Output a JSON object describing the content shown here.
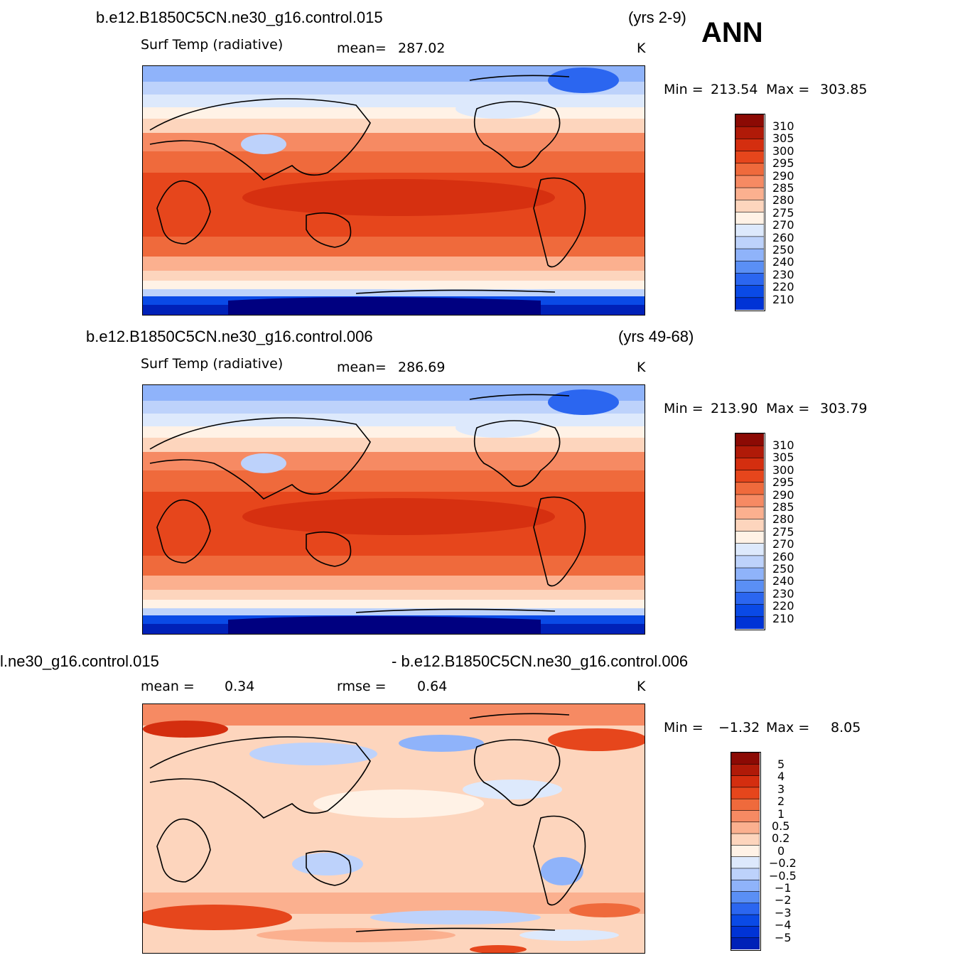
{
  "season": "ANN",
  "colors": {
    "temp": [
      "#000080",
      "#0021b8",
      "#0033d6",
      "#0a4ae6",
      "#2b66f0",
      "#5a8ff5",
      "#8fb3fa",
      "#bdd2fb",
      "#dde9fc",
      "#fff2e6",
      "#fdd5bd",
      "#fbb08f",
      "#f68a63",
      "#ef6a3c",
      "#e6461c",
      "#d42e0f",
      "#b01a08",
      "#8c0a04"
    ],
    "diff": [
      "#000080",
      "#0021b8",
      "#0033d6",
      "#0a4ae6",
      "#2b66f0",
      "#5a8ff5",
      "#8fb3fa",
      "#bdd2fb",
      "#dde9fc",
      "#fff2e6",
      "#fdd5bd",
      "#fbb08f",
      "#f68a63",
      "#ef6a3c",
      "#e6461c",
      "#d42e0f",
      "#b01a08",
      "#8c0a04"
    ],
    "coast": "#000000"
  },
  "panels": [
    {
      "case": "b.e12.B1850C5CN.ne30_g16.control.015",
      "years": "(yrs 2-9)",
      "field": "Surf Temp  (radiative)",
      "mean_label": "mean=",
      "mean_value": "287.02",
      "units": "K",
      "min_label": "Min  =",
      "min_value": "213.54",
      "max_label": "Max  =",
      "max_value": "303.85",
      "levels": [
        "310",
        "305",
        "300",
        "295",
        "290",
        "285",
        "280",
        "275",
        "270",
        "260",
        "250",
        "240",
        "230",
        "220",
        "210"
      ],
      "map_icon": "world-map-surface-temperature"
    },
    {
      "case": "b.e12.B1850C5CN.ne30_g16.control.006",
      "years": "(yrs 49-68)",
      "field": "Surf Temp  (radiative)",
      "mean_label": "mean=",
      "mean_value": "286.69",
      "units": "K",
      "min_label": "Min  =",
      "min_value": "213.90",
      "max_label": "Max  =",
      "max_value": "303.79",
      "levels": [
        "310",
        "305",
        "300",
        "295",
        "290",
        "285",
        "280",
        "275",
        "270",
        "260",
        "250",
        "240",
        "230",
        "220",
        "210"
      ],
      "map_icon": "world-map-surface-temperature"
    },
    {
      "case_left": "l.ne30_g16.control.015",
      "case_right": "- b.e12.B1850C5CN.ne30_g16.control.006",
      "mean_label": "mean =",
      "mean_value": "0.34",
      "rmse_label": "rmse =",
      "rmse_value": "0.64",
      "units": "K",
      "min_label": "Min  =",
      "min_value": "−1.32",
      "max_label": "Max  =",
      "max_value": "8.05",
      "levels": [
        "5",
        "4",
        "3",
        "2",
        "1",
        "0.5",
        "0.2",
        "0",
        "−0.2",
        "−0.5",
        "−1",
        "−2",
        "−3",
        "−4",
        "−5"
      ],
      "map_icon": "world-map-temperature-difference"
    }
  ]
}
